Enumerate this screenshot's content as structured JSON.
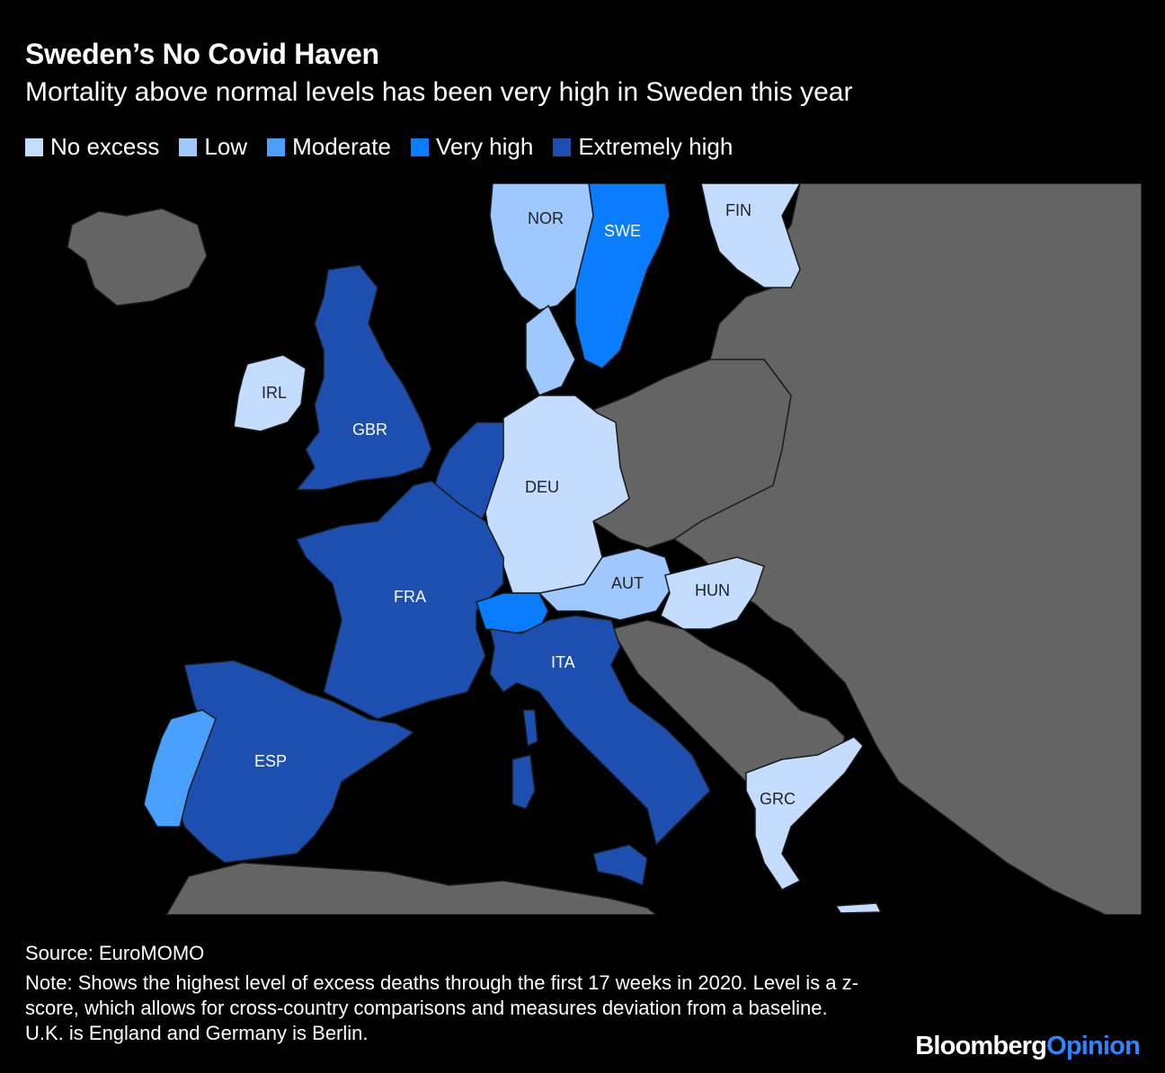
{
  "title": "Sweden’s No Covid Haven",
  "subtitle": "Mortality above normal levels has been very high in Sweden this year",
  "legend": [
    {
      "label": "No excess",
      "color": "#c4ddff"
    },
    {
      "label": "Low",
      "color": "#9fc8ff"
    },
    {
      "label": "Moderate",
      "color": "#4aa0ff"
    },
    {
      "label": "Very high",
      "color": "#0a7cff"
    },
    {
      "label": "Extremely high",
      "color": "#1d4fb0"
    }
  ],
  "countries": [
    {
      "code": "NOR",
      "level": "Low"
    },
    {
      "code": "SWE",
      "level": "Very high"
    },
    {
      "code": "FIN",
      "level": "No excess"
    },
    {
      "code": "IRL",
      "level": "No excess"
    },
    {
      "code": "GBR",
      "level": "Extremely high"
    },
    {
      "code": "DEU",
      "level": "No excess"
    },
    {
      "code": "FRA",
      "level": "Extremely high"
    },
    {
      "code": "AUT",
      "level": "Low"
    },
    {
      "code": "HUN",
      "level": "No excess"
    },
    {
      "code": "ITA",
      "level": "Extremely high"
    },
    {
      "code": "ESP",
      "level": "Extremely high"
    },
    {
      "code": "GRC",
      "level": "No excess"
    }
  ],
  "colors": {
    "other_land": "#646464",
    "sea": "#000000",
    "border": "#1a1a1a"
  },
  "source": "Source: EuroMOMO",
  "note": "Note: Shows the highest level of excess deaths through the first 17 weeks in 2020. Level is a z-score, which allows for cross-country comparisons and measures deviation from a baseline. U.K. is England and Germany is Berlin.",
  "brand": {
    "part1": "Bloomberg",
    "part2": "Opinion"
  }
}
